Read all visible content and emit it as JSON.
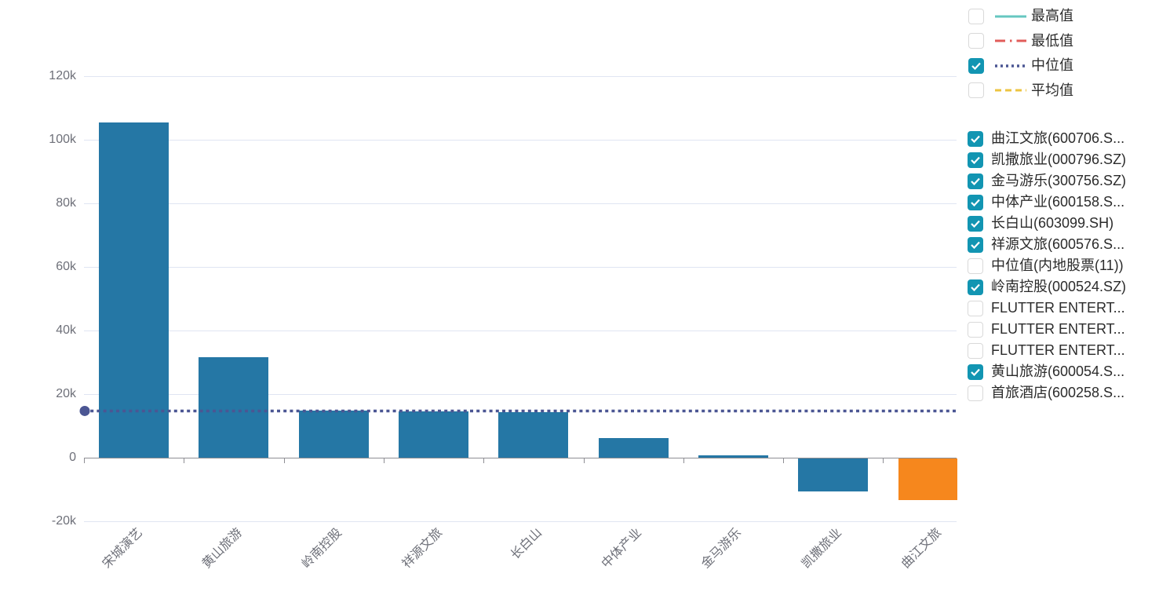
{
  "colors": {
    "background": "#ffffff",
    "bar": "#2577a5",
    "bar_highlight": "#f6871d",
    "median": "#4b5693",
    "grid": "#e0e5f2",
    "axis": "#8e8e93",
    "axis_text": "#6e7079",
    "legend_text": "#2b2b2b",
    "checkbox_checked": "#1295b2",
    "checkbox_border": "#d9d9d9"
  },
  "chart_data": {
    "type": "bar",
    "title": "",
    "categories": [
      "宋城演艺",
      "黄山旅游",
      "岭南控股",
      "祥源文旅",
      "长白山",
      "中体产业",
      "金马游乐",
      "凯撒旅业",
      "曲江文旅"
    ],
    "values": [
      105400,
      31500,
      14800,
      14500,
      14300,
      6200,
      800,
      -10400,
      -13100
    ],
    "bar_color": "#2577a5",
    "highlight": {
      "category": "曲江文旅",
      "color": "#f6871d"
    },
    "median_line": {
      "label": "中位值",
      "value": 14700,
      "color": "#4b5693",
      "style": "dotted"
    },
    "y_axis": {
      "min": -20000,
      "max": 120000,
      "interval": 20000,
      "tick_labels": [
        "-20k",
        "0",
        "20k",
        "40k",
        "60k",
        "80k",
        "100k",
        "120k"
      ]
    },
    "x_label_rotation": 45,
    "grid": true,
    "legend_position": "right"
  },
  "stat_legend": {
    "items": [
      {
        "key": "max-value",
        "label": "最高值",
        "checked": false,
        "line_style": "solid",
        "color": "#66c7c0"
      },
      {
        "key": "min-value",
        "label": "最低值",
        "checked": false,
        "line_style": "dash-dot",
        "color": "#e15c5a"
      },
      {
        "key": "median-value",
        "label": "中位值",
        "checked": true,
        "line_style": "dotted",
        "color": "#4b5693"
      },
      {
        "key": "mean-value",
        "label": "平均值",
        "checked": false,
        "line_style": "dashed",
        "color": "#edc441"
      }
    ]
  },
  "series_legend": {
    "items": [
      {
        "label": "曲江文旅(600706.S...",
        "checked": true
      },
      {
        "label": "凯撒旅业(000796.SZ)",
        "checked": true
      },
      {
        "label": "金马游乐(300756.SZ)",
        "checked": true
      },
      {
        "label": "中体产业(600158.S...",
        "checked": true
      },
      {
        "label": "长白山(603099.SH)",
        "checked": true
      },
      {
        "label": "祥源文旅(600576.S...",
        "checked": true
      },
      {
        "label": "中位值(内地股票(11))",
        "checked": false
      },
      {
        "label": "岭南控股(000524.SZ)",
        "checked": true
      },
      {
        "label": "FLUTTER ENTERT...",
        "checked": false
      },
      {
        "label": "FLUTTER ENTERT...",
        "checked": false
      },
      {
        "label": "FLUTTER ENTERT...",
        "checked": false
      },
      {
        "label": "黄山旅游(600054.S...",
        "checked": true
      },
      {
        "label": "首旅酒店(600258.S...",
        "checked": false
      }
    ]
  }
}
